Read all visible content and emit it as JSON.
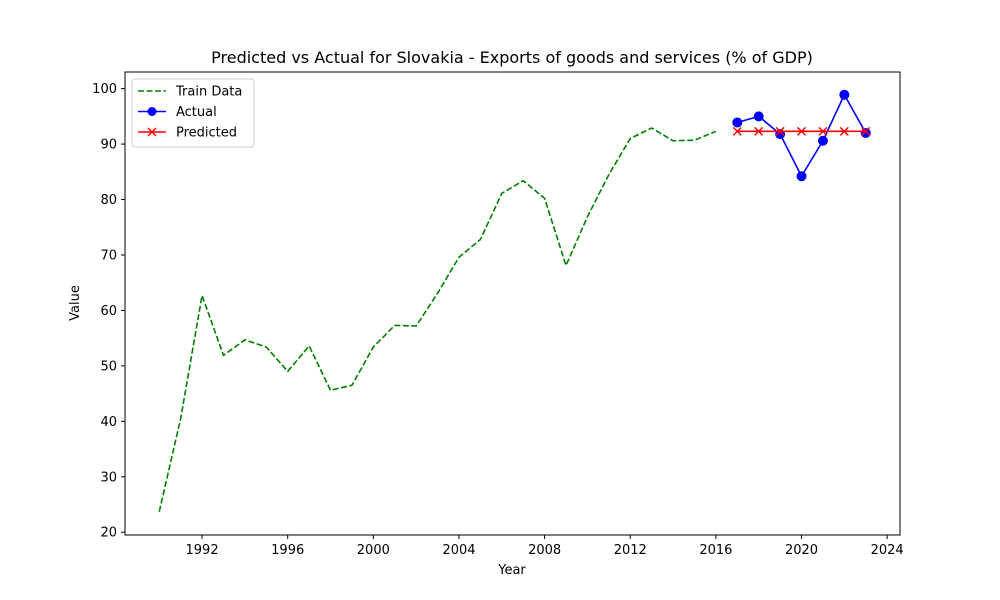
{
  "chart_data": {
    "type": "line",
    "title": "Predicted vs Actual for Slovakia - Exports of goods and services (% of GDP)",
    "xlabel": "Year",
    "ylabel": "Value",
    "xlim": [
      1988.4,
      2024.6
    ],
    "ylim": [
      19.5,
      103.0
    ],
    "xticks": [
      1992,
      1996,
      2000,
      2004,
      2008,
      2012,
      2016,
      2020,
      2024
    ],
    "yticks": [
      20,
      30,
      40,
      50,
      60,
      70,
      80,
      90,
      100
    ],
    "grid": false,
    "legend_position": "top-left",
    "series": [
      {
        "name": "Train Data",
        "color": "#008000",
        "line_style": "dashed",
        "marker": "none",
        "x": [
          1990,
          1991,
          1992,
          1993,
          1994,
          1995,
          1996,
          1997,
          1998,
          1999,
          2000,
          2001,
          2002,
          2003,
          2004,
          2005,
          2006,
          2007,
          2008,
          2009,
          2010,
          2011,
          2012,
          2013,
          2014,
          2015,
          2016
        ],
        "y": [
          23.7,
          40.5,
          62.7,
          51.9,
          54.7,
          53.4,
          49.0,
          53.6,
          45.6,
          46.5,
          53.4,
          57.3,
          57.2,
          63.1,
          69.6,
          72.8,
          81.1,
          83.4,
          80.2,
          68.1,
          76.9,
          84.5,
          91.0,
          92.9,
          90.6,
          90.7,
          92.3
        ]
      },
      {
        "name": "Actual",
        "color": "#0000ff",
        "line_style": "solid",
        "marker": "circle",
        "x": [
          2017,
          2018,
          2019,
          2020,
          2021,
          2022,
          2023
        ],
        "y": [
          93.9,
          95.0,
          91.8,
          84.2,
          90.6,
          98.9,
          92.0
        ]
      },
      {
        "name": "Predicted",
        "color": "#ff0000",
        "line_style": "solid",
        "marker": "x",
        "x": [
          2017,
          2018,
          2019,
          2020,
          2021,
          2022,
          2023
        ],
        "y": [
          92.3,
          92.3,
          92.3,
          92.3,
          92.3,
          92.3,
          92.3
        ]
      }
    ]
  }
}
